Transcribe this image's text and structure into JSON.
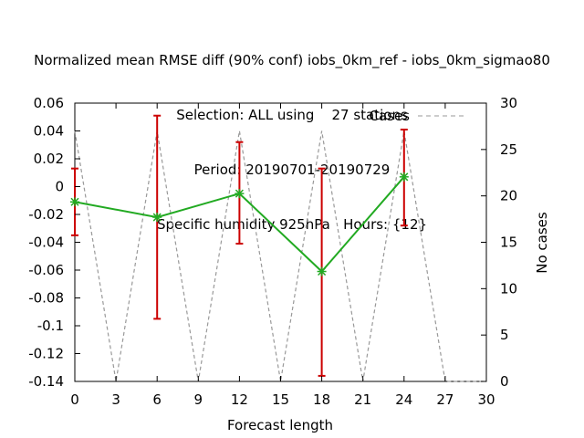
{
  "title_lines": [
    "Normalized mean RMSE diff (90% conf) iobs_0km_ref - iobs_0km_sigmao80",
    "Selection: ALL using    27 stations",
    "Period: 20190701-20190729",
    "Specific humidity 925hPa   Hours: {12}"
  ],
  "chart_data": {
    "type": "line",
    "xlabel": "Forecast length",
    "ylabel": "",
    "y2label": "No cases",
    "xlim": [
      0,
      30
    ],
    "ylim": [
      -0.14,
      0.06
    ],
    "y2lim": [
      0,
      30
    ],
    "xticks": [
      "0",
      "3",
      "6",
      "9",
      "12",
      "15",
      "18",
      "21",
      "24",
      "27",
      "30"
    ],
    "yticks": [
      "0.06",
      "0.04",
      "0.02",
      "0",
      "-0.02",
      "-0.04",
      "-0.06",
      "-0.08",
      "-0.1",
      "-0.12",
      "-0.14"
    ],
    "y2ticks": [
      "30",
      "25",
      "20",
      "15",
      "10",
      "5",
      "0"
    ],
    "grid": false,
    "legend_position": "top-right",
    "series": [
      {
        "name": "",
        "color": "#22aa22",
        "x": [
          0,
          6,
          12,
          18,
          24
        ],
        "values": [
          -0.011,
          -0.022,
          -0.005,
          -0.061,
          0.007
        ],
        "err_low": [
          -0.035,
          -0.095,
          -0.041,
          -0.136,
          -0.028
        ],
        "err_high": [
          0.013,
          0.051,
          0.032,
          0.013,
          0.041
        ],
        "err_color": "#cc0000"
      },
      {
        "name": "Cases",
        "color": "#999999",
        "axis": "right",
        "style": "dashed",
        "x": [
          0,
          3,
          6,
          9,
          12,
          15,
          18,
          21,
          24,
          27,
          30
        ],
        "values": [
          27,
          0,
          27,
          0,
          27,
          0,
          27,
          0,
          27,
          0,
          0
        ]
      }
    ]
  }
}
